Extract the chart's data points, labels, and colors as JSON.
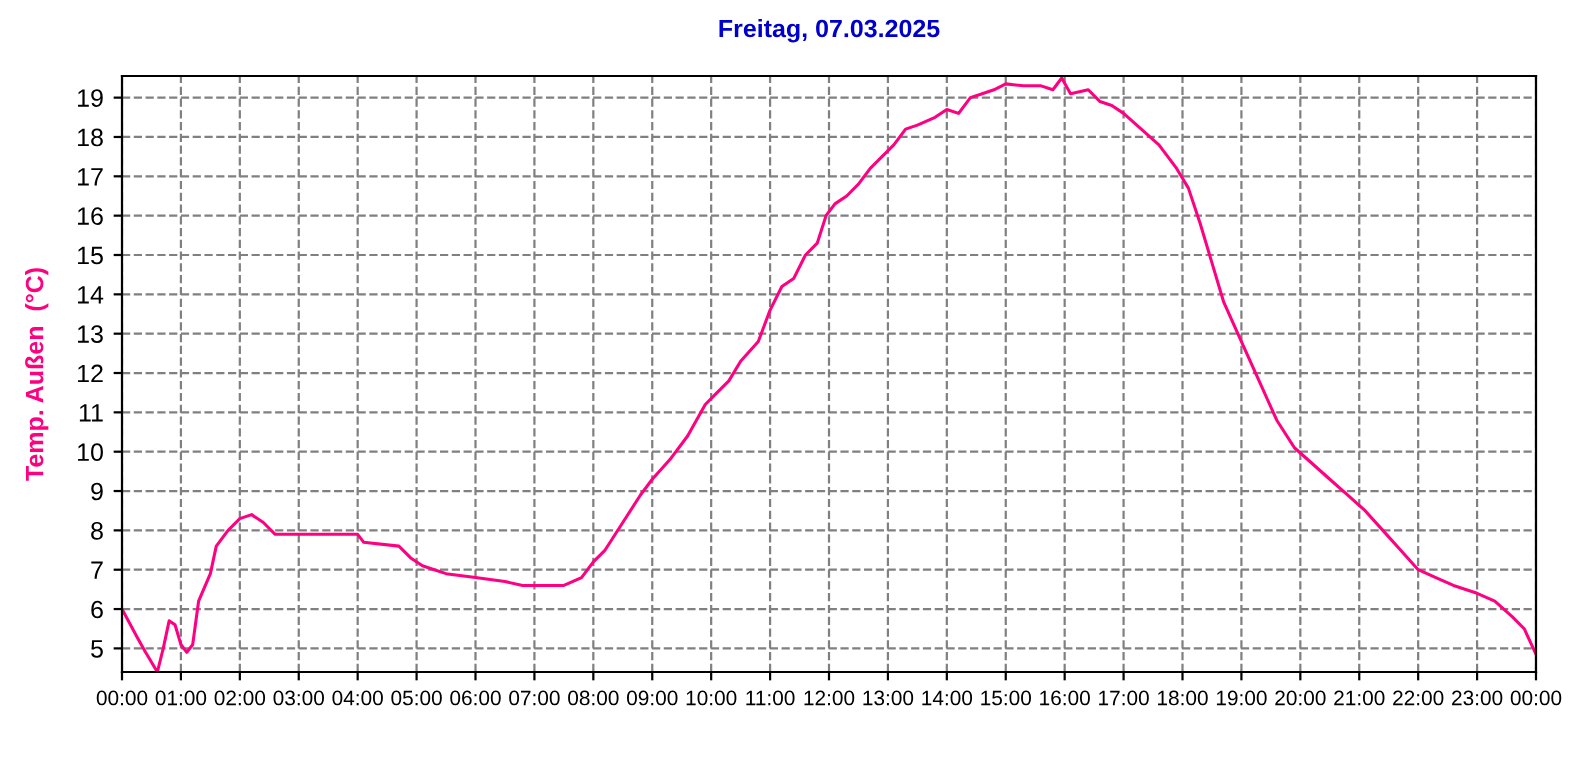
{
  "chart_data": {
    "type": "line",
    "title": "Freitag, 07.03.2025",
    "ylabel": "Temp. Außen  (°C)",
    "xlim": [
      0,
      24
    ],
    "ylim": [
      4.4,
      19.55
    ],
    "xticks": [
      {
        "value": 0,
        "label": "00:00"
      },
      {
        "value": 1,
        "label": "01:00"
      },
      {
        "value": 2,
        "label": "02:00"
      },
      {
        "value": 3,
        "label": "03:00"
      },
      {
        "value": 4,
        "label": "04:00"
      },
      {
        "value": 5,
        "label": "05:00"
      },
      {
        "value": 6,
        "label": "06:00"
      },
      {
        "value": 7,
        "label": "07:00"
      },
      {
        "value": 8,
        "label": "08:00"
      },
      {
        "value": 9,
        "label": "09:00"
      },
      {
        "value": 10,
        "label": "10:00"
      },
      {
        "value": 11,
        "label": "11:00"
      },
      {
        "value": 12,
        "label": "12:00"
      },
      {
        "value": 13,
        "label": "13:00"
      },
      {
        "value": 14,
        "label": "14:00"
      },
      {
        "value": 15,
        "label": "15:00"
      },
      {
        "value": 16,
        "label": "16:00"
      },
      {
        "value": 17,
        "label": "17:00"
      },
      {
        "value": 18,
        "label": "18:00"
      },
      {
        "value": 19,
        "label": "19:00"
      },
      {
        "value": 20,
        "label": "20:00"
      },
      {
        "value": 21,
        "label": "21:00"
      },
      {
        "value": 22,
        "label": "22:00"
      },
      {
        "value": 23,
        "label": "23:00"
      },
      {
        "value": 24,
        "label": "00:00"
      }
    ],
    "yticks": [
      5,
      6,
      7,
      8,
      9,
      10,
      11,
      12,
      13,
      14,
      15,
      16,
      17,
      18,
      19
    ],
    "grid": true,
    "line_style": "solid",
    "series": [
      {
        "color": "#ff0080",
        "x": [
          0,
          0.25,
          0.4,
          0.6,
          0.7,
          0.8,
          0.9,
          1.0,
          1.1,
          1.2,
          1.3,
          1.5,
          1.6,
          1.8,
          2.0,
          2.2,
          2.4,
          2.6,
          3.0,
          4.0,
          4.1,
          4.7,
          4.9,
          5.1,
          5.3,
          5.5,
          6.0,
          6.5,
          6.8,
          7.5,
          7.8,
          8.0,
          8.2,
          8.5,
          8.8,
          9.0,
          9.3,
          9.6,
          9.9,
          10.1,
          10.3,
          10.5,
          10.8,
          11.0,
          11.2,
          11.4,
          11.6,
          11.8,
          11.95,
          12.1,
          12.3,
          12.5,
          12.7,
          12.9,
          13.1,
          13.3,
          13.5,
          13.8,
          14.0,
          14.2,
          14.4,
          14.6,
          14.8,
          15.0,
          15.3,
          15.6,
          15.8,
          15.95,
          16.1,
          16.4,
          16.6,
          16.8,
          17.0,
          17.3,
          17.6,
          17.9,
          18.1,
          18.3,
          18.5,
          18.7,
          19.0,
          19.3,
          19.6,
          19.9,
          20.2,
          20.5,
          20.8,
          21.1,
          21.4,
          21.7,
          22.0,
          22.3,
          22.6,
          23.0,
          23.3,
          23.6,
          23.8,
          24.0
        ],
        "values": [
          6.0,
          5.3,
          4.9,
          4.4,
          5.0,
          5.7,
          5.6,
          5.1,
          4.9,
          5.1,
          6.2,
          6.9,
          7.6,
          8.0,
          8.3,
          8.4,
          8.2,
          7.9,
          7.9,
          7.9,
          7.7,
          7.6,
          7.3,
          7.1,
          7.0,
          6.9,
          6.8,
          6.7,
          6.6,
          6.6,
          6.8,
          7.2,
          7.5,
          8.2,
          8.9,
          9.3,
          9.8,
          10.4,
          11.2,
          11.5,
          11.8,
          12.3,
          12.8,
          13.6,
          14.2,
          14.4,
          15.0,
          15.3,
          16.0,
          16.3,
          16.5,
          16.8,
          17.2,
          17.5,
          17.8,
          18.2,
          18.3,
          18.5,
          18.7,
          18.6,
          19.0,
          19.1,
          19.2,
          19.35,
          19.3,
          19.3,
          19.2,
          19.5,
          19.1,
          19.2,
          18.9,
          18.8,
          18.6,
          18.2,
          17.8,
          17.2,
          16.7,
          15.8,
          14.8,
          13.8,
          12.8,
          11.8,
          10.8,
          10.1,
          9.7,
          9.3,
          8.9,
          8.5,
          8.0,
          7.5,
          7.0,
          6.8,
          6.6,
          6.4,
          6.2,
          5.8,
          5.5,
          4.85
        ]
      }
    ]
  }
}
